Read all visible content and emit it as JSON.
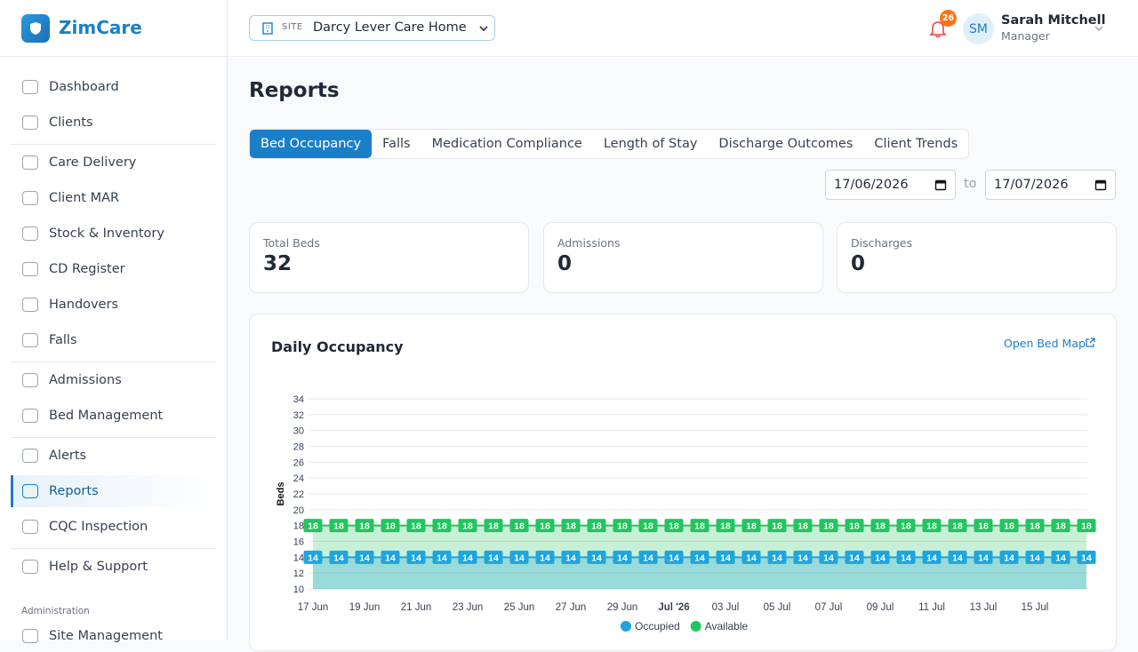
{
  "sidebar": {
    "brand": "ZimCare",
    "nav": [
      [
        "Dashboard",
        "Clients"
      ],
      [
        "Care Delivery",
        "Client MAR",
        "Stock & Inventory",
        "CD Register",
        "Handovers",
        "Falls"
      ],
      [
        "Admissions",
        "Bed Management"
      ],
      [
        "Alerts",
        "Reports",
        "CQC Inspection"
      ],
      [
        "Help & Support"
      ]
    ],
    "active_nav": [
      3,
      1
    ],
    "section_label": "Administration",
    "admin_nav": [
      "Site Management"
    ]
  },
  "topbar": {
    "site_label": "SITE",
    "site": "Darcy Lever Care Home",
    "notifications": 26,
    "user": {
      "initials": "SM",
      "name": "Sarah Mitchell",
      "role": "Manager"
    }
  },
  "page": {
    "title": "Reports",
    "tabs": [
      "Bed Occupancy",
      "Falls",
      "Medication Compliance",
      "Length of Stay",
      "Discharge Outcomes",
      "Client Trends"
    ],
    "active_tab": 0,
    "date_from": "17/06/2026",
    "date_separator": "to",
    "date_to": "17/07/2026",
    "stats": [
      {
        "label": "Total Beds",
        "value": 32
      },
      {
        "label": "Admissions",
        "value": 0
      },
      {
        "label": "Discharges",
        "value": 0
      }
    ],
    "card_title": "Daily Occupancy",
    "card_link": "Open Bed Map"
  },
  "chart_data": {
    "type": "area",
    "y_label": "Beds",
    "categories": [
      "17 Jun",
      null,
      "19 Jun",
      null,
      "21 Jun",
      null,
      "23 Jun",
      null,
      "25 Jun",
      null,
      "27 Jun",
      null,
      "29 Jun",
      null,
      "Jul '26",
      null,
      "03 Jul",
      null,
      "05 Jul",
      null,
      "07 Jul",
      null,
      "09 Jul",
      null,
      "11 Jul",
      null,
      "13 Jul",
      null,
      "15 Jul",
      null,
      null
    ],
    "series": [
      {
        "name": "Occupied",
        "color": "#1ea5de",
        "values": [
          14,
          14,
          14,
          14,
          14,
          14,
          14,
          14,
          14,
          14,
          14,
          14,
          14,
          14,
          14,
          14,
          14,
          14,
          14,
          14,
          14,
          14,
          14,
          14,
          14,
          14,
          14,
          14,
          14,
          14,
          14
        ]
      },
      {
        "name": "Available",
        "color": "#22c55e",
        "values": [
          18,
          18,
          18,
          18,
          18,
          18,
          18,
          18,
          18,
          18,
          18,
          18,
          18,
          18,
          18,
          18,
          18,
          18,
          18,
          18,
          18,
          18,
          18,
          18,
          18,
          18,
          18,
          18,
          18,
          18,
          18
        ]
      }
    ],
    "ylim": [
      10,
      34
    ],
    "yticks": [
      10,
      12,
      14,
      16,
      18,
      20,
      22,
      24,
      26,
      28,
      30,
      32,
      34
    ],
    "grid": true,
    "legend": "bottom"
  }
}
